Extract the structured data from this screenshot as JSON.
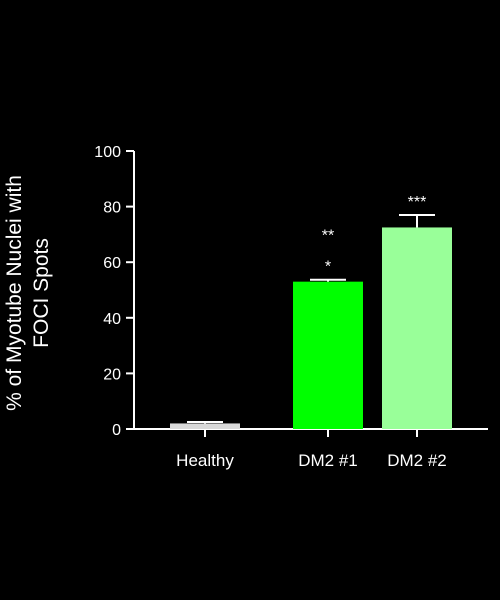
{
  "chart_data": {
    "type": "bar",
    "title": "",
    "xlabel": "",
    "ylabel_lines": [
      "% of Myotube Nuclei with",
      "FOCI Spots"
    ],
    "categories": [
      "Healthy",
      "DM2 #1",
      "DM2 #2"
    ],
    "values": [
      2,
      53,
      72.5
    ],
    "errors": [
      0.5,
      0.7,
      4.5
    ],
    "significance": [
      "",
      "**\n*",
      "***"
    ],
    "ylim": [
      0,
      100
    ],
    "yticks": [
      0,
      20,
      40,
      60,
      80,
      100
    ],
    "grid": false,
    "colors": {
      "bars": [
        "#d9d9d9",
        "#00ff00",
        "#99ff99"
      ],
      "axis": "#ffffff",
      "background": "#000000"
    }
  }
}
